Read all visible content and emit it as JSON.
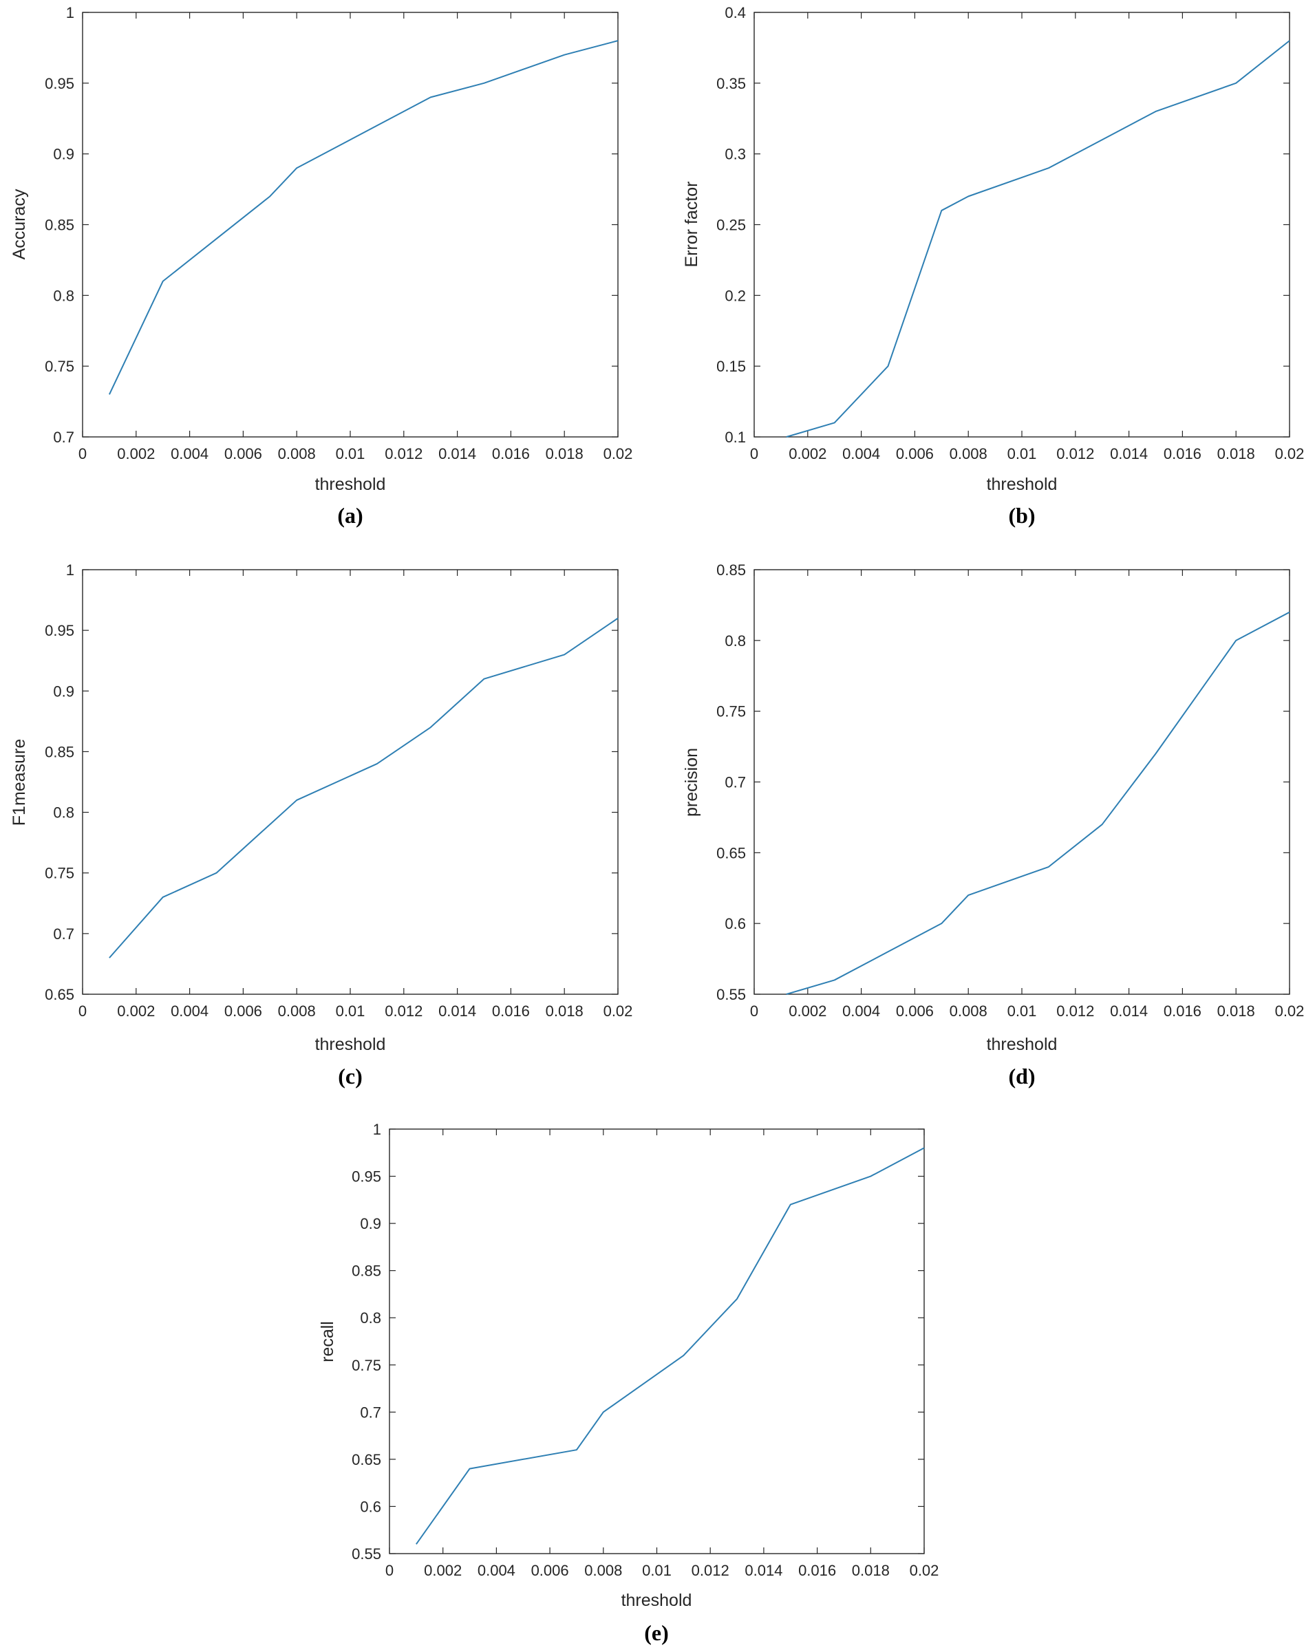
{
  "colors": {
    "line": "#2e7fb3",
    "axis": "#262626",
    "background": "#ffffff"
  },
  "chart_data": [
    {
      "type": "line",
      "caption": "(a)",
      "xlabel": "threshold",
      "ylabel": "Accuracy",
      "xlim": [
        0,
        0.02
      ],
      "ylim": [
        0.7,
        1
      ],
      "xticks": [
        0,
        0.002,
        0.004,
        0.006,
        0.008,
        0.01,
        0.012,
        0.014,
        0.016,
        0.018,
        0.02
      ],
      "xticklabels": [
        "0",
        "0.002",
        "0.004",
        "0.006",
        "0.008",
        "0.01",
        "0.012",
        "0.014",
        "0.016",
        "0.018",
        "0.02"
      ],
      "yticks": [
        0.7,
        0.75,
        0.8,
        0.85,
        0.9,
        0.95,
        1
      ],
      "yticklabels": [
        "0.7",
        "0.75",
        "0.8",
        "0.85",
        "0.9",
        "0.95",
        "1"
      ],
      "grid": false,
      "series": [
        {
          "name": "Accuracy",
          "x": [
            0.001,
            0.003,
            0.005,
            0.007,
            0.008,
            0.011,
            0.013,
            0.015,
            0.018,
            0.02
          ],
          "y": [
            0.73,
            0.81,
            0.84,
            0.87,
            0.89,
            0.92,
            0.94,
            0.95,
            0.97,
            0.98
          ]
        }
      ]
    },
    {
      "type": "line",
      "caption": "(b)",
      "xlabel": "threshold",
      "ylabel": "Error factor",
      "xlim": [
        0,
        0.02
      ],
      "ylim": [
        0.1,
        0.4
      ],
      "xticks": [
        0,
        0.002,
        0.004,
        0.006,
        0.008,
        0.01,
        0.012,
        0.014,
        0.016,
        0.018,
        0.02
      ],
      "xticklabels": [
        "0",
        "0.002",
        "0.004",
        "0.006",
        "0.008",
        "0.01",
        "0.012",
        "0.014",
        "0.016",
        "0.018",
        "0.02"
      ],
      "yticks": [
        0.1,
        0.15,
        0.2,
        0.25,
        0.3,
        0.35,
        0.4
      ],
      "yticklabels": [
        "0.1",
        "0.15",
        "0.2",
        "0.25",
        "0.3",
        "0.35",
        "0.4"
      ],
      "grid": false,
      "series": [
        {
          "name": "Error factor",
          "x": [
            0.0012,
            0.003,
            0.005,
            0.007,
            0.008,
            0.011,
            0.013,
            0.015,
            0.018,
            0.02
          ],
          "y": [
            0.1,
            0.11,
            0.15,
            0.26,
            0.27,
            0.29,
            0.31,
            0.33,
            0.35,
            0.38
          ]
        }
      ]
    },
    {
      "type": "line",
      "caption": "(c)",
      "xlabel": "threshold",
      "ylabel": "F1measure",
      "xlim": [
        0,
        0.02
      ],
      "ylim": [
        0.65,
        1
      ],
      "xticks": [
        0,
        0.002,
        0.004,
        0.006,
        0.008,
        0.01,
        0.012,
        0.014,
        0.016,
        0.018,
        0.02
      ],
      "xticklabels": [
        "0",
        "0.002",
        "0.004",
        "0.006",
        "0.008",
        "0.01",
        "0.012",
        "0.014",
        "0.016",
        "0.018",
        "0.02"
      ],
      "yticks": [
        0.65,
        0.7,
        0.75,
        0.8,
        0.85,
        0.9,
        0.95,
        1
      ],
      "yticklabels": [
        "0.65",
        "0.7",
        "0.75",
        "0.8",
        "0.85",
        "0.9",
        "0.95",
        "1"
      ],
      "grid": false,
      "series": [
        {
          "name": "F1measure",
          "x": [
            0.001,
            0.003,
            0.005,
            0.007,
            0.008,
            0.011,
            0.013,
            0.015,
            0.018,
            0.02
          ],
          "y": [
            0.68,
            0.73,
            0.75,
            0.79,
            0.81,
            0.84,
            0.87,
            0.91,
            0.93,
            0.96
          ]
        }
      ]
    },
    {
      "type": "line",
      "caption": "(d)",
      "xlabel": "threshold",
      "ylabel": "precision",
      "xlim": [
        0,
        0.02
      ],
      "ylim": [
        0.55,
        0.85
      ],
      "xticks": [
        0,
        0.002,
        0.004,
        0.006,
        0.008,
        0.01,
        0.012,
        0.014,
        0.016,
        0.018,
        0.02
      ],
      "xticklabels": [
        "0",
        "0.002",
        "0.004",
        "0.006",
        "0.008",
        "0.01",
        "0.012",
        "0.014",
        "0.016",
        "0.018",
        "0.02"
      ],
      "yticks": [
        0.55,
        0.6,
        0.65,
        0.7,
        0.75,
        0.8,
        0.85
      ],
      "yticklabels": [
        "0.55",
        "0.6",
        "0.65",
        "0.7",
        "0.75",
        "0.8",
        "0.85"
      ],
      "grid": false,
      "series": [
        {
          "name": "precision",
          "x": [
            0.0012,
            0.003,
            0.005,
            0.007,
            0.008,
            0.011,
            0.013,
            0.015,
            0.018,
            0.02
          ],
          "y": [
            0.55,
            0.56,
            0.58,
            0.6,
            0.62,
            0.64,
            0.67,
            0.72,
            0.8,
            0.82
          ]
        }
      ]
    },
    {
      "type": "line",
      "caption": "(e)",
      "xlabel": "threshold",
      "ylabel": "recall",
      "xlim": [
        0,
        0.02
      ],
      "ylim": [
        0.55,
        1
      ],
      "xticks": [
        0,
        0.002,
        0.004,
        0.006,
        0.008,
        0.01,
        0.012,
        0.014,
        0.016,
        0.018,
        0.02
      ],
      "xticklabels": [
        "0",
        "0.002",
        "0.004",
        "0.006",
        "0.008",
        "0.01",
        "0.012",
        "0.014",
        "0.016",
        "0.018",
        "0.02"
      ],
      "yticks": [
        0.55,
        0.6,
        0.65,
        0.7,
        0.75,
        0.8,
        0.85,
        0.9,
        0.95,
        1
      ],
      "yticklabels": [
        "0.55",
        "0.6",
        "0.65",
        "0.7",
        "0.75",
        "0.8",
        "0.85",
        "0.9",
        "0.95",
        "1"
      ],
      "grid": false,
      "series": [
        {
          "name": "recall",
          "x": [
            0.001,
            0.003,
            0.007,
            0.008,
            0.011,
            0.013,
            0.015,
            0.018,
            0.02
          ],
          "y": [
            0.56,
            0.64,
            0.66,
            0.7,
            0.76,
            0.82,
            0.92,
            0.95,
            0.98
          ]
        }
      ]
    }
  ]
}
